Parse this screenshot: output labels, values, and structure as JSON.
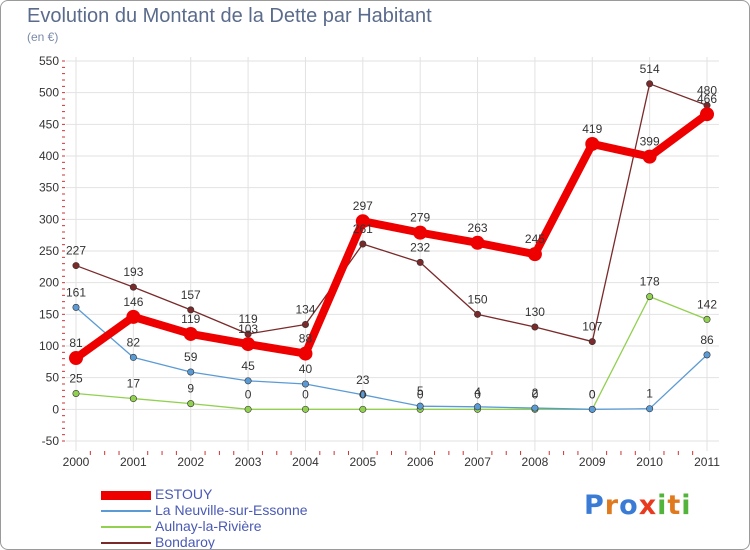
{
  "chart_data": {
    "type": "line",
    "title": "Evolution du Montant de la Dette par Habitant",
    "subtitle": "(en €)",
    "x": [
      "2000",
      "2001",
      "2002",
      "2003",
      "2004",
      "2005",
      "2006",
      "2007",
      "2008",
      "2009",
      "2010",
      "2011"
    ],
    "ylim": [
      -50,
      550
    ],
    "yticks": [
      -50,
      0,
      50,
      100,
      150,
      200,
      250,
      300,
      350,
      400,
      450,
      500,
      550
    ],
    "grid": true,
    "legend_position": "bottom-left",
    "series": [
      {
        "name": "ESTOUY",
        "color": "#ee0000",
        "values": [
          81,
          146,
          119,
          103,
          88,
          297,
          279,
          263,
          245,
          419,
          399,
          466
        ]
      },
      {
        "name": "La Neuville-sur-Essonne",
        "color": "#5b9bd5",
        "values": [
          161,
          82,
          59,
          45,
          40,
          23,
          5,
          4,
          2,
          0,
          1,
          86
        ]
      },
      {
        "name": "Aulnay-la-Rivière",
        "color": "#92d050",
        "values": [
          25,
          17,
          9,
          0,
          0,
          0,
          0,
          0,
          0,
          0,
          178,
          142
        ]
      },
      {
        "name": "Bondaroy",
        "color": "#7a2a2a",
        "values": [
          227,
          193,
          157,
          119,
          134,
          261,
          232,
          150,
          130,
          107,
          514,
          480
        ]
      }
    ]
  },
  "logo": {
    "text": "Proxiti"
  }
}
